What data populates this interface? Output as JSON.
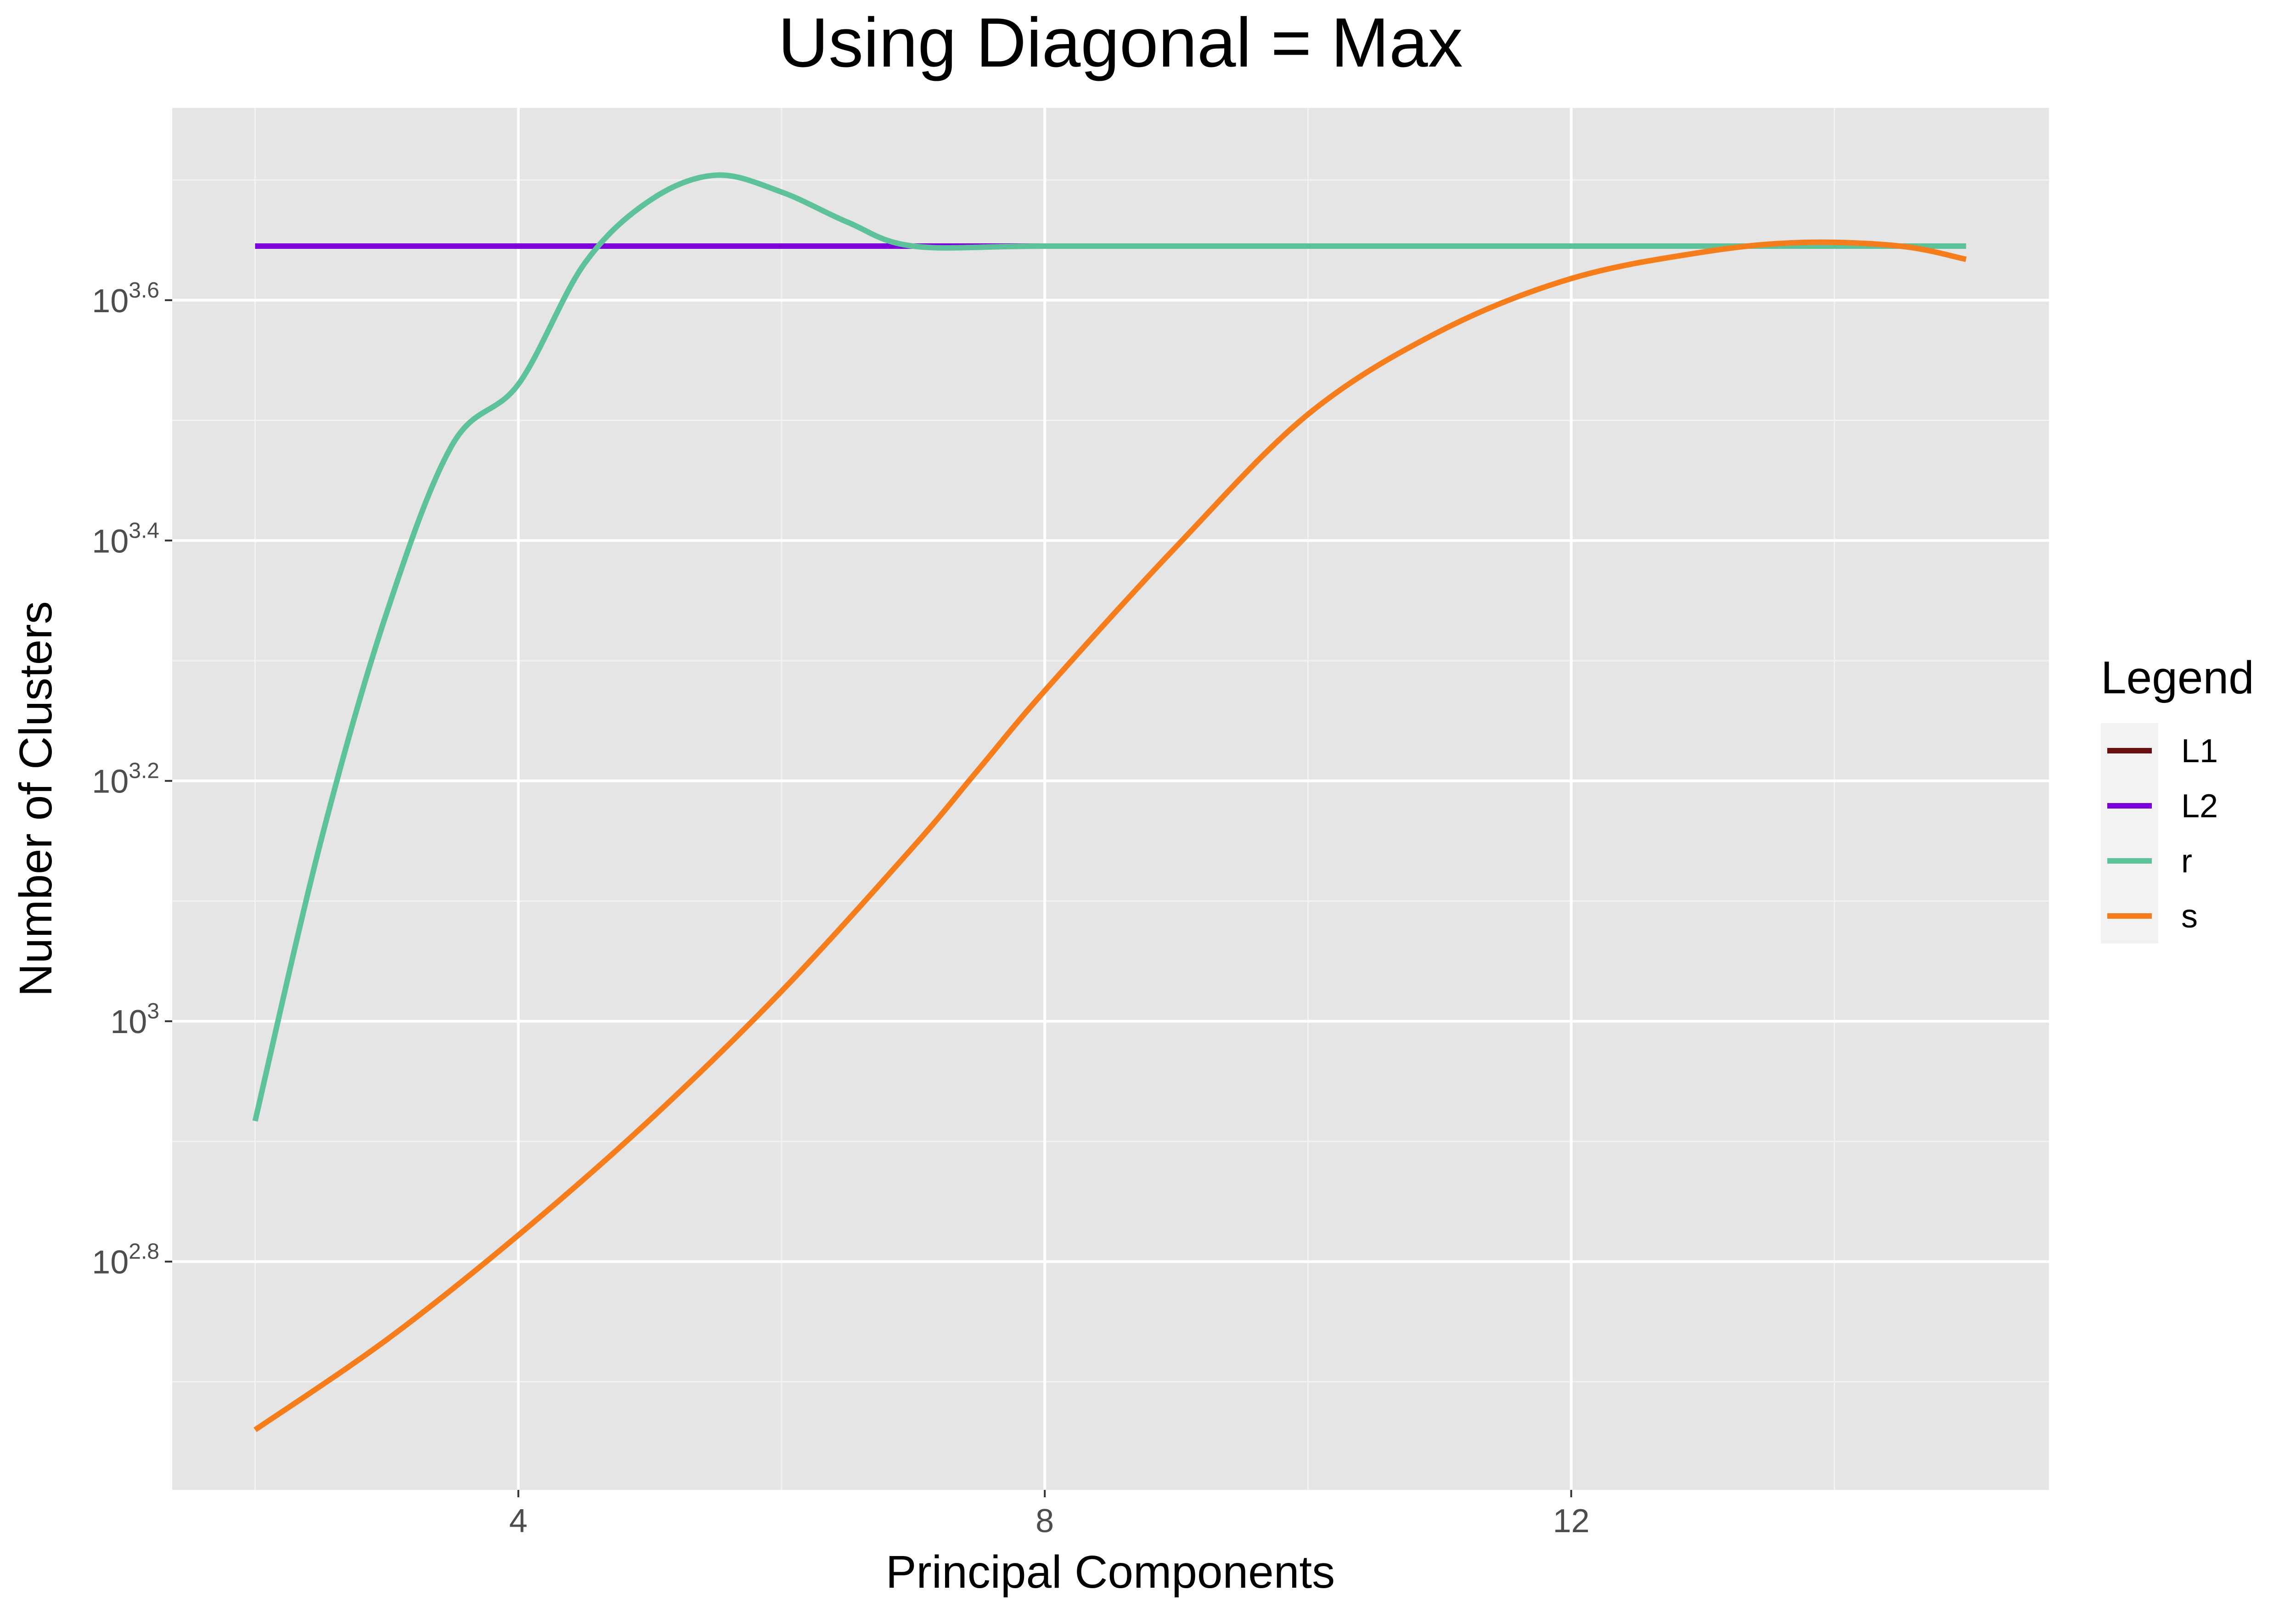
{
  "chart_data": {
    "type": "line",
    "title": "Using Diagonal = Max",
    "xlabel": "Principal Components",
    "ylabel": "Number of Clusters",
    "x_scale": "linear",
    "y_scale": "log10",
    "xlim": [
      1.37,
      15.63
    ],
    "ylim_log10": [
      2.61,
      3.76
    ],
    "x_ticks": [
      {
        "value": 4,
        "label": "4"
      },
      {
        "value": 8,
        "label": "8"
      },
      {
        "value": 12,
        "label": "12"
      }
    ],
    "y_ticks": [
      {
        "value": 2.8,
        "base": "10",
        "exp": "2.8"
      },
      {
        "value": 3.0,
        "base": "10",
        "exp": "3"
      },
      {
        "value": 3.2,
        "base": "10",
        "exp": "3.2"
      },
      {
        "value": 3.4,
        "base": "10",
        "exp": "3.4"
      },
      {
        "value": 3.6,
        "base": "10",
        "exp": "3.6"
      }
    ],
    "grid": true,
    "legend": {
      "title": "Legend",
      "position": "right"
    },
    "series": [
      {
        "name": "L1",
        "color": "#6a0f0f",
        "x": [
          2,
          15
        ],
        "y_log10": [
          3.645,
          3.645
        ]
      },
      {
        "name": "L2",
        "color": "#7b00d9",
        "x": [
          2,
          15
        ],
        "y_log10": [
          3.645,
          3.645
        ]
      },
      {
        "name": "r",
        "color": "#5dc29a",
        "x": [
          2,
          2.5,
          3,
          3.5,
          4,
          4.5,
          5,
          5.5,
          6,
          6.5,
          7,
          8,
          10,
          12,
          14,
          15
        ],
        "y_log10": [
          2.917,
          3.15,
          3.34,
          3.48,
          3.53,
          3.63,
          3.683,
          3.704,
          3.69,
          3.665,
          3.645,
          3.645,
          3.645,
          3.645,
          3.645,
          3.645
        ]
      },
      {
        "name": "s",
        "color": "#f57d1b",
        "x": [
          2,
          3,
          4,
          5,
          6,
          7,
          7.5,
          8,
          9,
          10,
          11,
          12,
          13,
          13.75,
          14.5,
          15
        ],
        "y_log10": [
          2.66,
          2.735,
          2.822,
          2.918,
          3.025,
          3.145,
          3.21,
          3.275,
          3.395,
          3.505,
          3.574,
          3.618,
          3.64,
          3.648,
          3.645,
          3.634
        ]
      }
    ]
  }
}
